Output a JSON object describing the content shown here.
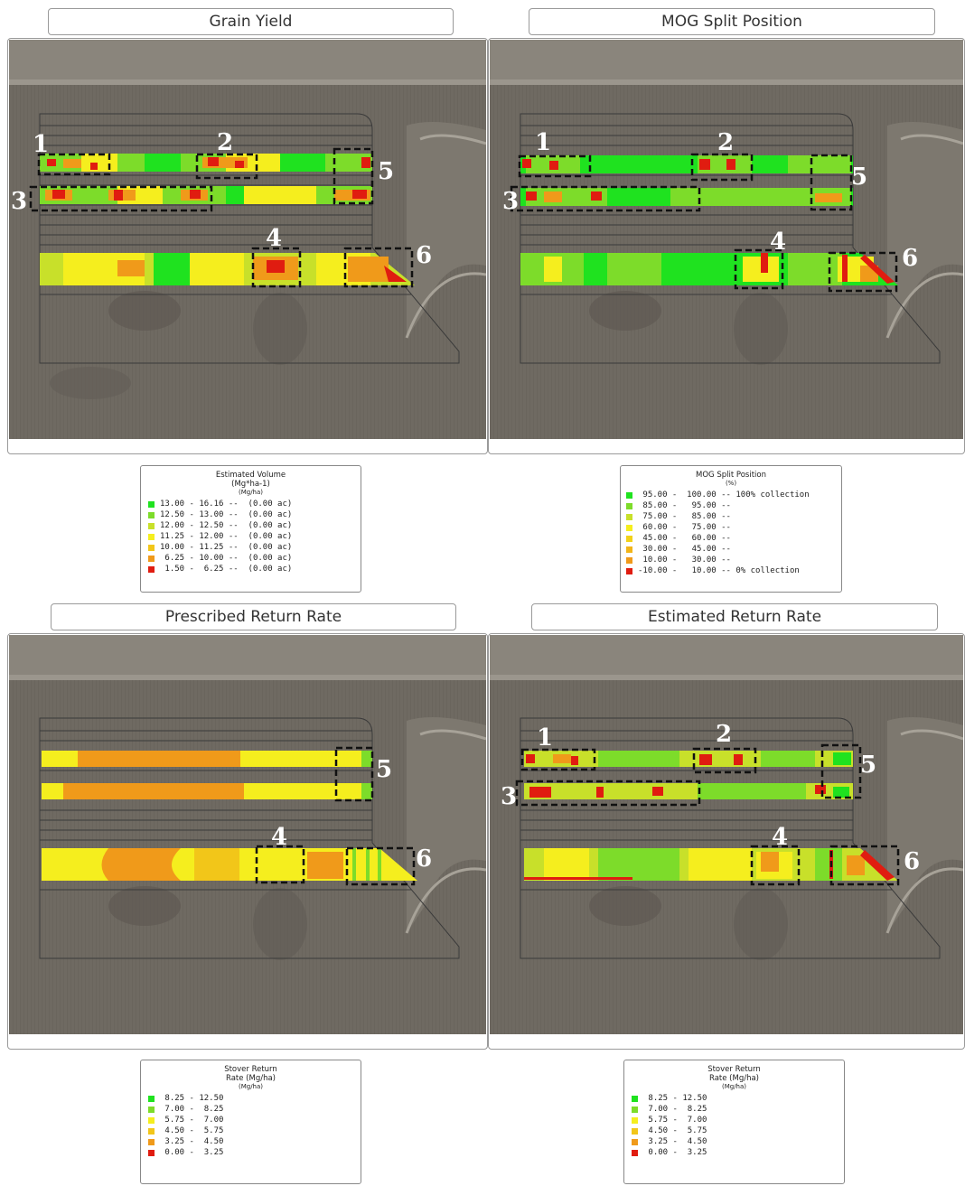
{
  "colors": {
    "field_bg": "#6f6a62",
    "road": "#8d8880",
    "green_bright": "#1fe21f",
    "green": "#7ddc2a",
    "yellow_green": "#c8e02a",
    "yellow": "#f5ee1e",
    "orange_yellow": "#f2c619",
    "orange": "#f09a1a",
    "red": "#e01c10"
  },
  "panels": [
    {
      "title": "Grain Yield",
      "labels": [
        "1",
        "2",
        "3",
        "4",
        "5",
        "6"
      ],
      "legend": {
        "title_lines": [
          "Estimated Volume",
          "(Mg*ha-1)"
        ],
        "unit": "(Mg/ha)",
        "rows": [
          {
            "color": "#1fe21f",
            "text": "13.00 - 16.16 --  (0.00 ac)"
          },
          {
            "color": "#7ddc2a",
            "text": "12.50 - 13.00 --  (0.00 ac)"
          },
          {
            "color": "#c8e02a",
            "text": "12.00 - 12.50 --  (0.00 ac)"
          },
          {
            "color": "#f5ee1e",
            "text": "11.25 - 12.00 --  (0.00 ac)"
          },
          {
            "color": "#f2c619",
            "text": "10.00 - 11.25 --  (0.00 ac)"
          },
          {
            "color": "#f09a1a",
            "text": " 6.25 - 10.00 --  (0.00 ac)"
          },
          {
            "color": "#e01c10",
            "text": " 1.50 -  6.25 --  (0.00 ac)"
          }
        ]
      }
    },
    {
      "title": "MOG Split Position",
      "labels": [
        "1",
        "2",
        "3",
        "4",
        "5",
        "6"
      ],
      "legend": {
        "title_lines": [
          "MOG Split Position"
        ],
        "unit": "(%)",
        "rows": [
          {
            "color": "#1fe21f",
            "text": " 95.00 -  100.00 -- 100% collection"
          },
          {
            "color": "#7ddc2a",
            "text": " 85.00 -   95.00 --"
          },
          {
            "color": "#c8e02a",
            "text": " 75.00 -   85.00 --"
          },
          {
            "color": "#f5ee1e",
            "text": " 60.00 -   75.00 --"
          },
          {
            "color": "#f2d219",
            "text": " 45.00 -   60.00 --"
          },
          {
            "color": "#f2b519",
            "text": " 30.00 -   45.00 --"
          },
          {
            "color": "#f09a1a",
            "text": " 10.00 -   30.00 --"
          },
          {
            "color": "#e01c10",
            "text": "-10.00 -   10.00 -- 0% collection"
          }
        ]
      }
    },
    {
      "title": "Prescribed Return Rate",
      "labels": [
        "4",
        "5",
        "6"
      ],
      "legend": {
        "title_lines": [
          "Stover Return",
          "Rate (Mg/ha)"
        ],
        "unit": "(Mg/ha)",
        "rows": [
          {
            "color": "#1fe21f",
            "text": " 8.25 - 12.50"
          },
          {
            "color": "#7ddc2a",
            "text": " 7.00 -  8.25"
          },
          {
            "color": "#f5ee1e",
            "text": " 5.75 -  7.00"
          },
          {
            "color": "#f2c619",
            "text": " 4.50 -  5.75"
          },
          {
            "color": "#f09a1a",
            "text": " 3.25 -  4.50"
          },
          {
            "color": "#e01c10",
            "text": " 0.00 -  3.25"
          }
        ]
      }
    },
    {
      "title": "Estimated Return Rate",
      "labels": [
        "1",
        "2",
        "3",
        "4",
        "5",
        "6"
      ],
      "legend": {
        "title_lines": [
          "Stover Return",
          "Rate (Mg/ha)"
        ],
        "unit": "(Mg/ha)",
        "rows": [
          {
            "color": "#1fe21f",
            "text": " 8.25 - 12.50"
          },
          {
            "color": "#7ddc2a",
            "text": " 7.00 -  8.25"
          },
          {
            "color": "#f5ee1e",
            "text": " 5.75 -  7.00"
          },
          {
            "color": "#f2c619",
            "text": " 4.50 -  5.75"
          },
          {
            "color": "#f09a1a",
            "text": " 3.25 -  4.50"
          },
          {
            "color": "#e01c10",
            "text": " 0.00 -  3.25"
          }
        ]
      }
    }
  ]
}
